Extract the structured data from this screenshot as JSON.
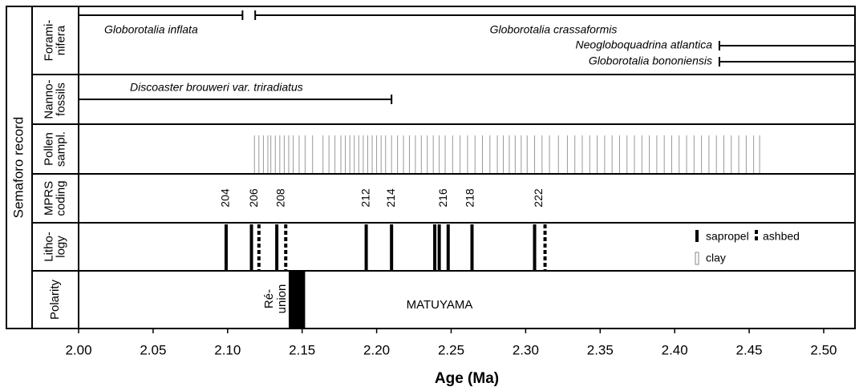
{
  "chart_data": {
    "type": "stratigraphic",
    "y_label": "Semaforo record",
    "x_label": "Age (Ma)",
    "xlim": [
      2.0,
      2.521
    ],
    "xticks": [
      {
        "value": 2.0,
        "label": "2.00"
      },
      {
        "value": 2.05,
        "label": "2.05"
      },
      {
        "value": 2.1,
        "label": "2.10"
      },
      {
        "value": 2.15,
        "label": "2.15"
      },
      {
        "value": 2.2,
        "label": "2.20"
      },
      {
        "value": 2.25,
        "label": "2.25"
      },
      {
        "value": 2.3,
        "label": "2.30"
      },
      {
        "value": 2.35,
        "label": "2.35"
      },
      {
        "value": 2.4,
        "label": "2.40"
      },
      {
        "value": 2.45,
        "label": "2.45"
      },
      {
        "value": 2.5,
        "label": "2.50"
      }
    ],
    "rows": {
      "foraminifera": {
        "label": [
          "Forami-",
          "nifera"
        ],
        "ranges": [
          {
            "name": "Globorotalia inflata",
            "start": 2.0,
            "end": 2.11
          },
          {
            "name": "Globorotalia crassaformis",
            "start": 2.1185,
            "end": 2.521
          },
          {
            "name": "Neogloboquadrina atlantica",
            "start": 2.43,
            "end": 2.521
          },
          {
            "name": "Globorotalia bononiensis",
            "start": 2.43,
            "end": 2.521
          }
        ]
      },
      "nannofossils": {
        "label": [
          "Nanno-",
          "fossils"
        ],
        "ranges": [
          {
            "name": "Discoaster brouweri var. triradiatus",
            "start": 2.0,
            "end": 2.21
          }
        ]
      },
      "pollen": {
        "label": [
          "Pollen",
          "sampl."
        ],
        "color": "#999999",
        "samples": [
          2.118,
          2.121,
          2.124,
          2.127,
          2.129,
          2.132,
          2.135,
          2.138,
          2.141,
          2.144,
          2.148,
          2.152,
          2.157,
          2.164,
          2.168,
          2.172,
          2.176,
          2.179,
          2.182,
          2.185,
          2.188,
          2.191,
          2.194,
          2.197,
          2.2,
          2.203,
          2.206,
          2.21,
          2.214,
          2.218,
          2.222,
          2.226,
          2.23,
          2.234,
          2.238,
          2.242,
          2.246,
          2.251,
          2.256,
          2.261,
          2.266,
          2.271,
          2.276,
          2.281,
          2.285,
          2.289,
          2.293,
          2.297,
          2.301,
          2.306,
          2.311,
          2.316,
          2.322,
          2.328,
          2.333,
          2.338,
          2.343,
          2.348,
          2.353,
          2.358,
          2.363,
          2.368,
          2.373,
          2.378,
          2.383,
          2.388,
          2.393,
          2.398,
          2.403,
          2.408,
          2.413,
          2.418,
          2.423,
          2.428,
          2.433,
          2.438,
          2.443,
          2.448,
          2.453,
          2.457
        ]
      },
      "mprs": {
        "label": [
          "MPRS",
          "coding"
        ],
        "codes": [
          {
            "label": "204",
            "age": 2.099
          },
          {
            "label": "206",
            "age": 2.118
          },
          {
            "label": "208",
            "age": 2.136
          },
          {
            "label": "212",
            "age": 2.193
          },
          {
            "label": "214",
            "age": 2.21
          },
          {
            "label": "216",
            "age": 2.245
          },
          {
            "label": "218",
            "age": 2.263
          },
          {
            "label": "222",
            "age": 2.309
          }
        ]
      },
      "lithology": {
        "label": [
          "Litho-",
          "logy"
        ],
        "sapropel": {
          "name": "sapropel",
          "ages": [
            2.099,
            2.116,
            2.133,
            2.193,
            2.21,
            2.239,
            2.242,
            2.248,
            2.264,
            2.306
          ]
        },
        "ashbed": {
          "name": "ashbed",
          "ages": [
            2.121,
            2.139,
            2.313
          ]
        },
        "clay": {
          "name": "clay"
        }
      },
      "polarity": {
        "label": [
          "Polarity"
        ],
        "chron": "MATUYAMA",
        "event": {
          "label": [
            "Ré-",
            "union"
          ],
          "start": 2.141,
          "end": 2.152
        }
      }
    }
  }
}
